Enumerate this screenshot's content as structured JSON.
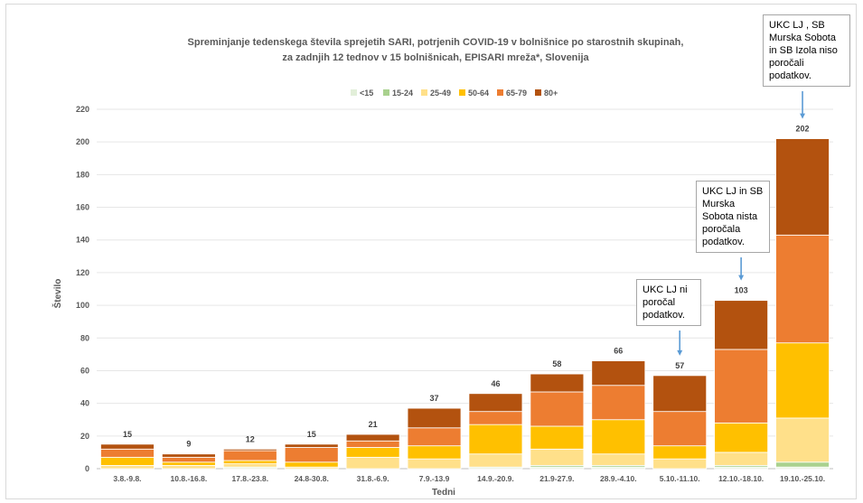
{
  "chart_data": {
    "type": "bar",
    "stacked": true,
    "title_line1": "Spreminjanje tedenskega števila sprejetih SARI, potrjenih COVID-19 v bolnišnice po starostnih skupinah,",
    "title_line2": "za zadnjih 12 tednov v 15 bolnišnicah, EPISARI mreža*, Slovenija",
    "xlabel": "Tedni",
    "ylabel": "Število",
    "ylim": [
      0,
      220
    ],
    "yticks": [
      0,
      20,
      40,
      60,
      80,
      100,
      120,
      140,
      160,
      180,
      200,
      220
    ],
    "grid": true,
    "legend_position": "top",
    "categories": [
      "3.8.-9.8.",
      "10.8.-16.8.",
      "17.8.-23.8.",
      "24.8-30.8.",
      "31.8.-6.9.",
      "7.9.-13.9",
      "14.9.-20.9.",
      "21.9-27.9.",
      "28.9.-4.10.",
      "5.10.-11.10.",
      "12.10.-18.10.",
      "19.10.-25.10."
    ],
    "totals": [
      15,
      9,
      12,
      15,
      21,
      37,
      46,
      58,
      66,
      57,
      103,
      202
    ],
    "series": [
      {
        "name": "<15",
        "color": "#e2efd9",
        "values": [
          0,
          0,
          1,
          0,
          0,
          0,
          1,
          1,
          1,
          0,
          1,
          1
        ]
      },
      {
        "name": "15-24",
        "color": "#a9d18e",
        "values": [
          0,
          0,
          0,
          0,
          0,
          0,
          0,
          1,
          1,
          0,
          1,
          3
        ]
      },
      {
        "name": "25-49",
        "color": "#ffe08a",
        "values": [
          2,
          2,
          2,
          1,
          7,
          6,
          8,
          10,
          7,
          6,
          8,
          27
        ]
      },
      {
        "name": "50-64",
        "color": "#ffc000",
        "values": [
          5,
          2,
          2,
          3,
          6,
          8,
          18,
          14,
          21,
          8,
          18,
          46
        ]
      },
      {
        "name": "65-79",
        "color": "#ed7d31",
        "values": [
          5,
          3,
          6,
          9,
          4,
          11,
          8,
          21,
          21,
          21,
          45,
          66
        ]
      },
      {
        "name": "80+",
        "color": "#b3520f",
        "values": [
          3,
          2,
          1,
          2,
          4,
          12,
          11,
          11,
          15,
          22,
          30,
          59
        ]
      }
    ]
  },
  "notes": [
    {
      "text": "UKC LJ ni\nporočal\npodatkov.",
      "category_index": 9
    },
    {
      "text": "UKC LJ in SB\nMurska\nSobota nista\nporočala\npodatkov.",
      "category_index": 10
    },
    {
      "text": "UKC LJ , SB\nMurska Sobota\nin SB Izola niso\nporočali\npodatkov.",
      "category_index": 11
    }
  ]
}
